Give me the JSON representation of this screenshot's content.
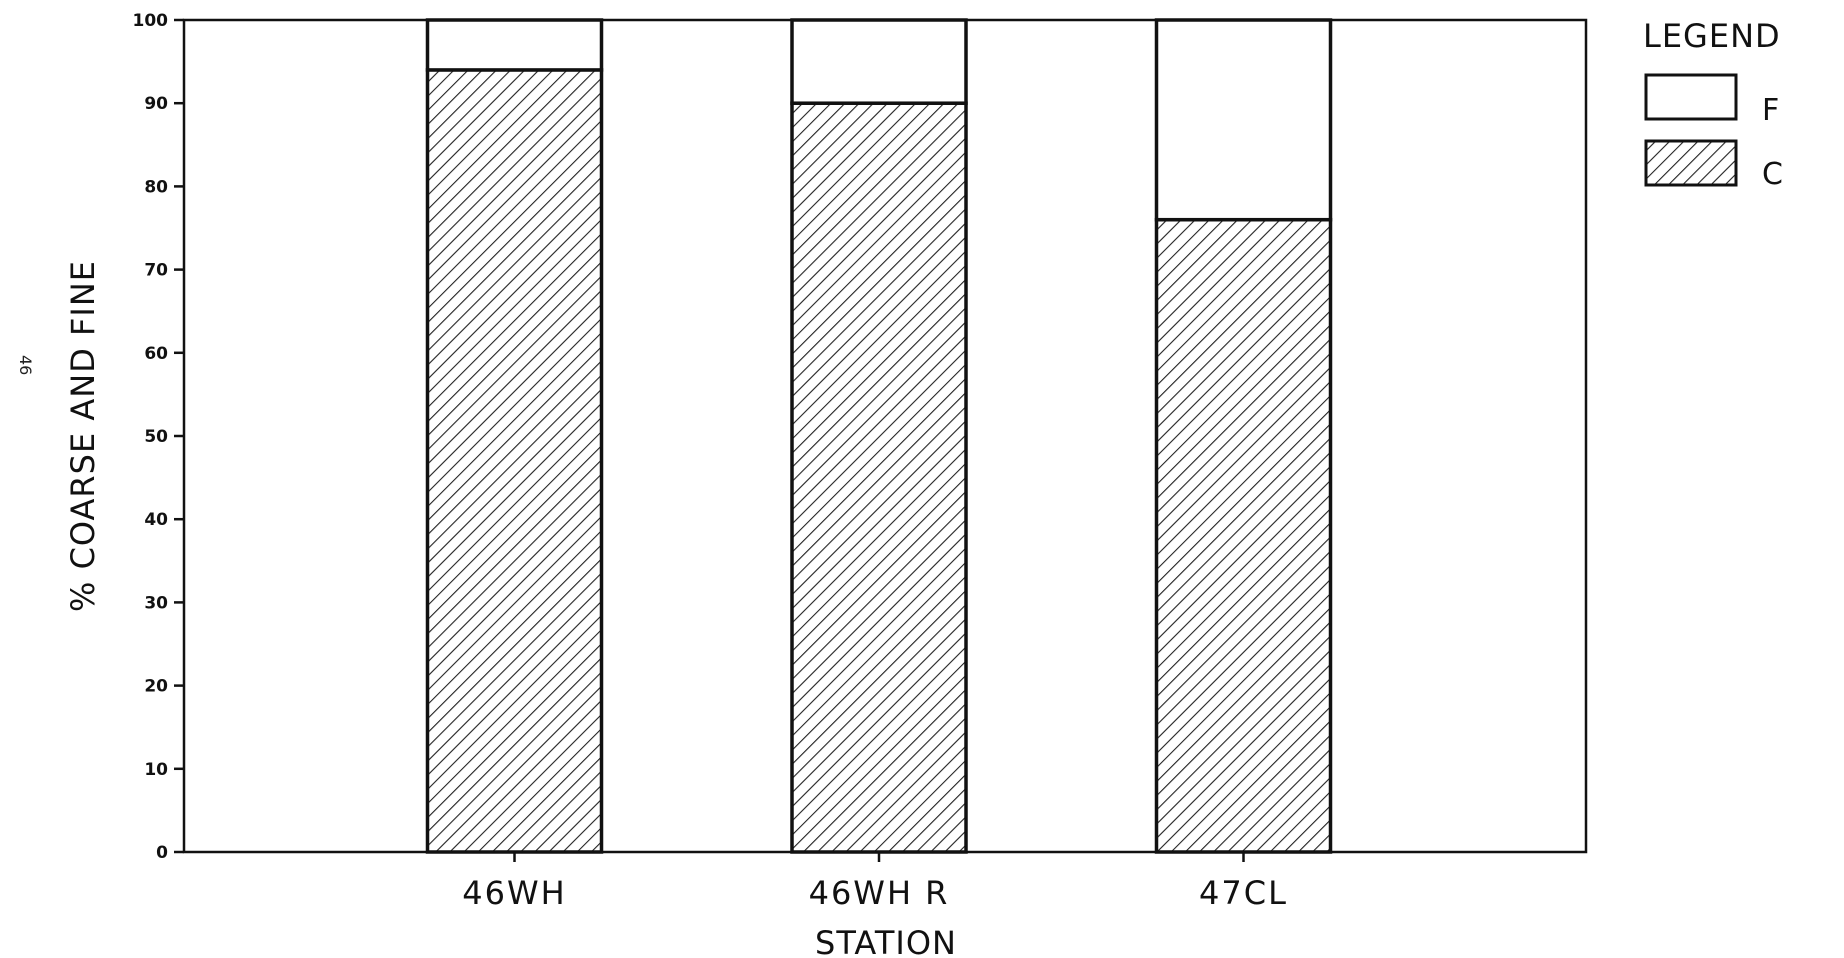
{
  "page_note": "46",
  "chart_data": {
    "type": "bar",
    "stacked": true,
    "title": "",
    "xlabel": "STATION",
    "ylabel": "% COARSE AND FINE",
    "categories": [
      "46WH",
      "46WH R",
      "47CL"
    ],
    "series": [
      {
        "name": "C",
        "values": [
          94,
          90,
          76
        ],
        "fill": "hatched"
      },
      {
        "name": "F",
        "values": [
          6,
          10,
          24
        ],
        "fill": "white"
      }
    ],
    "ylim": [
      0,
      100
    ],
    "yticks": [
      0,
      10,
      20,
      30,
      40,
      50,
      60,
      70,
      80,
      90,
      100
    ],
    "grid": false,
    "legend": {
      "title": "LEGEND",
      "placement": "top-right",
      "order": [
        "F",
        "C"
      ]
    },
    "colors": {
      "ink": "#111111",
      "background": "#ffffff"
    }
  }
}
